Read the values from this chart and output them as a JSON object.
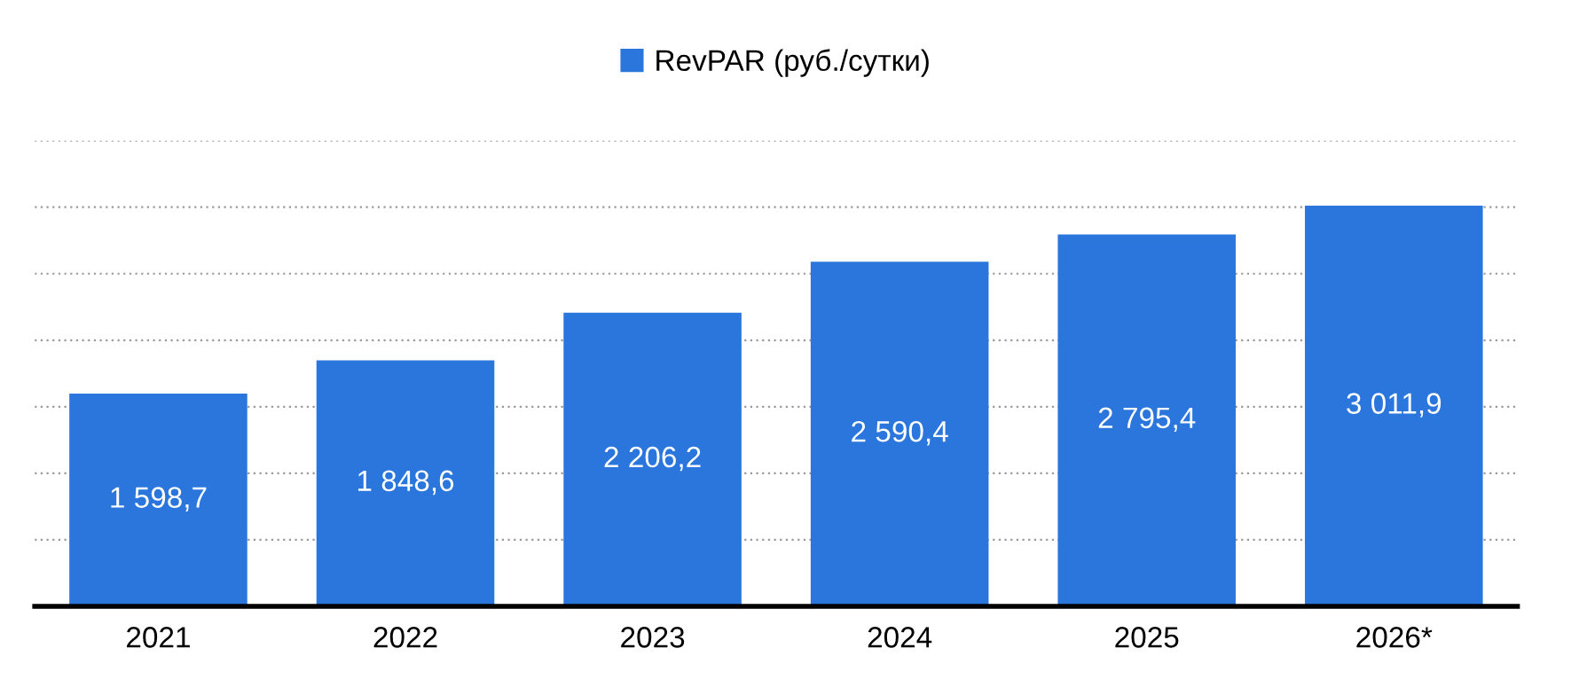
{
  "chart_data": {
    "type": "bar",
    "categories": [
      "2021",
      "2022",
      "2023",
      "2024",
      "2025",
      "2026*"
    ],
    "series": [
      {
        "name": "RevPAR (руб./сутки)",
        "color": "#2a76dc",
        "values": [
          1598.7,
          1848.6,
          2206.2,
          2590.4,
          2795.4,
          3011.9
        ],
        "value_labels": [
          "1 598,7",
          "1 848,6",
          "2 206,2",
          "2 590,4",
          "2 795,4",
          "3 011,9"
        ]
      }
    ],
    "ylim": [
      0,
      3500
    ],
    "yticks": [
      {
        "value": 0,
        "label": null
      },
      {
        "value": 500,
        "label": null
      },
      {
        "value": 1000,
        "label": null
      },
      {
        "value": 1500,
        "label": null
      },
      {
        "value": 2000,
        "label": null
      },
      {
        "value": 2500,
        "label": null
      },
      {
        "value": 3000,
        "label": null
      },
      {
        "value": 3500,
        "label": null
      }
    ],
    "tick_labels": "x",
    "grid": "y",
    "legend": "top"
  }
}
